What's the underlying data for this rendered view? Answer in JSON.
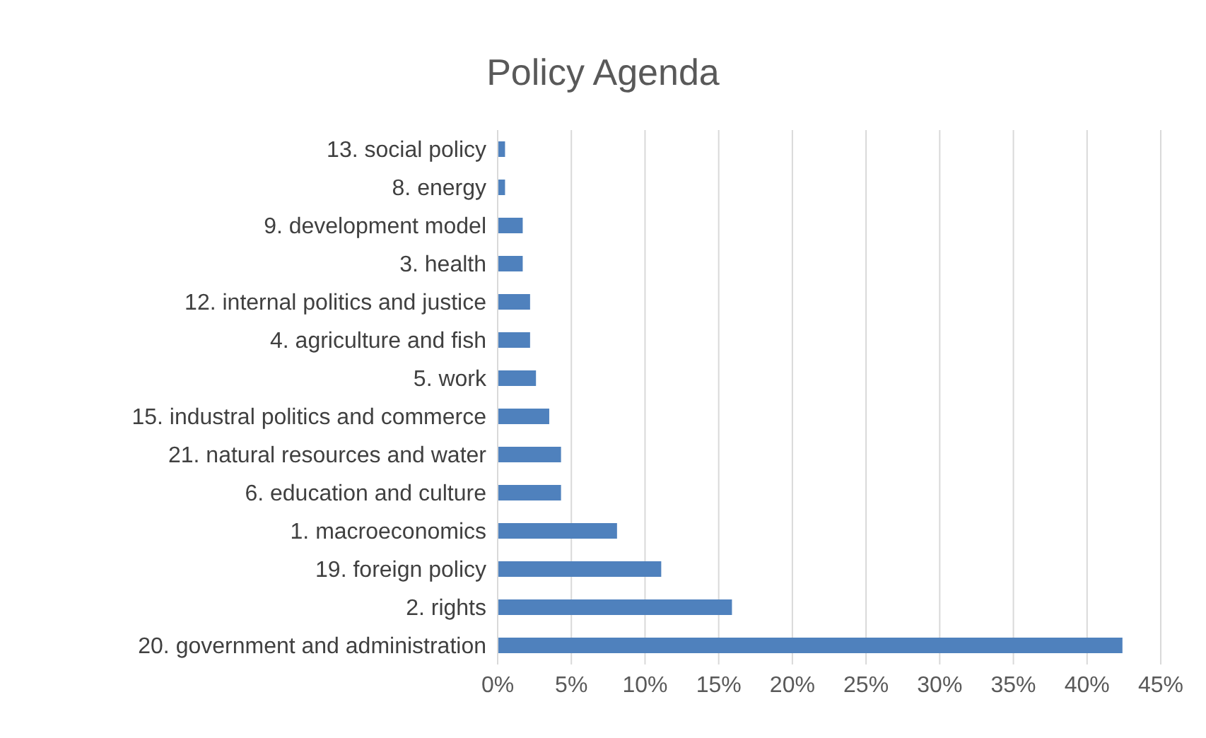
{
  "chart_data": {
    "type": "bar",
    "orientation": "horizontal",
    "title": "Policy Agenda",
    "categories": [
      "13. social policy",
      "8. energy",
      "9. development model",
      "3. health",
      "12. internal politics and justice",
      "4. agriculture and fish",
      "5. work",
      "15. industral politics and commerce",
      "21. natural resources and water",
      "6. education and culture",
      "1. macroeconomics",
      "19. foreign policy",
      "2. rights",
      "20. government and administration"
    ],
    "values": [
      0.5,
      0.5,
      1.7,
      1.7,
      2.2,
      2.2,
      2.6,
      3.5,
      4.3,
      4.3,
      8.1,
      11.1,
      15.9,
      42.4
    ],
    "color": "#4f81bd",
    "xlim": [
      0,
      45
    ],
    "xticks": [
      {
        "value": 0,
        "label": "0%"
      },
      {
        "value": 5,
        "label": "5%"
      },
      {
        "value": 10,
        "label": "10%"
      },
      {
        "value": 15,
        "label": "15%"
      },
      {
        "value": 20,
        "label": "20%"
      },
      {
        "value": 25,
        "label": "25%"
      },
      {
        "value": 30,
        "label": "30%"
      },
      {
        "value": 35,
        "label": "35%"
      },
      {
        "value": 40,
        "label": "40%"
      },
      {
        "value": 45,
        "label": "45%"
      }
    ],
    "grid": "x",
    "legend": false
  }
}
